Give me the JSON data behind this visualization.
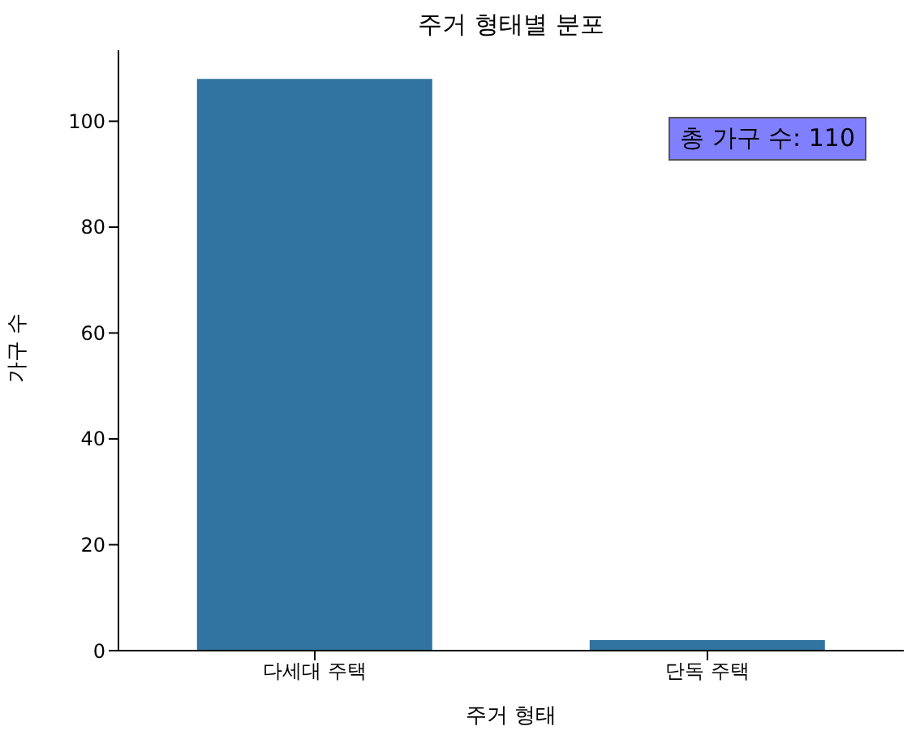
{
  "chart_data": {
    "type": "bar",
    "title": "주거 형태별 분포",
    "xlabel": "주거 형태",
    "ylabel": "가구 수",
    "categories": [
      "다세대 주택",
      "단독 주택"
    ],
    "values": [
      108,
      2
    ],
    "color": "#3274a1",
    "ylim": [
      0,
      113.4
    ],
    "yticks": [
      0,
      20,
      40,
      60,
      80,
      100
    ],
    "grid": false,
    "annotations": [
      "총 가구 수: 110"
    ]
  }
}
